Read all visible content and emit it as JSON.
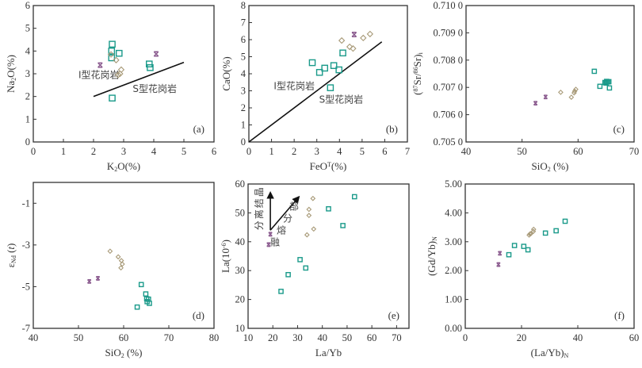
{
  "chart_data": [
    {
      "id": "a",
      "type": "scatter",
      "panel_label": "(a)",
      "xlabel": "K₂O(%)",
      "ylabel": "Na₂O(%)",
      "xlim": [
        0,
        6
      ],
      "ylim": [
        0,
        6
      ],
      "xticks": [
        0,
        1,
        2,
        3,
        4,
        5,
        6
      ],
      "yticks": [
        0,
        1,
        2,
        3,
        4,
        5,
        6
      ],
      "xtick_labels": [
        "0",
        "1",
        "2",
        "3",
        "4",
        "5",
        "6"
      ],
      "ytick_labels": [
        "0",
        "1",
        "2",
        "3",
        "4",
        "5",
        "6"
      ],
      "lines": [
        {
          "name": "I-S boundary",
          "points": [
            [
              2.0,
              2.0
            ],
            [
              5.0,
              3.5
            ]
          ]
        }
      ],
      "annotations": [
        {
          "text": "I型花岗岩",
          "x": 1.5,
          "y": 2.8
        },
        {
          "text": "S型花岗岩",
          "x": 3.3,
          "y": 2.2
        }
      ],
      "series": [
        {
          "name": "square",
          "marker": "square",
          "points": [
            [
              2.62,
              4.3
            ],
            [
              2.6,
              4.0
            ],
            [
              2.85,
              3.9
            ],
            [
              2.6,
              3.7
            ],
            [
              3.85,
              3.43
            ],
            [
              3.88,
              3.27
            ],
            [
              2.62,
              1.93
            ]
          ]
        },
        {
          "name": "diamond",
          "marker": "diamond",
          "points": [
            [
              2.58,
              3.85
            ],
            [
              2.75,
              3.6
            ],
            [
              2.92,
              3.18
            ],
            [
              2.88,
              3.0
            ],
            [
              2.82,
              2.95
            ]
          ]
        },
        {
          "name": "x",
          "marker": "x",
          "points": [
            [
              2.22,
              3.38
            ],
            [
              4.08,
              3.87
            ]
          ]
        }
      ]
    },
    {
      "id": "b",
      "type": "scatter",
      "panel_label": "(b)",
      "xlabel": "FeOᵀ(%)",
      "ylabel": "CaO(%)",
      "xlim": [
        0,
        7
      ],
      "ylim": [
        0,
        8
      ],
      "xticks": [
        0,
        1,
        2,
        3,
        4,
        5,
        6,
        7
      ],
      "yticks": [
        0,
        1,
        2,
        3,
        4,
        5,
        6,
        7,
        8
      ],
      "xtick_labels": [
        "0",
        "1",
        "2",
        "3",
        "4",
        "5",
        "6",
        "7"
      ],
      "ytick_labels": [
        "0",
        "1",
        "2",
        "3",
        "4",
        "5",
        "6",
        "7",
        "8"
      ],
      "lines": [
        {
          "name": "I-S boundary",
          "points": [
            [
              0,
              0
            ],
            [
              5.87,
              5.87
            ]
          ]
        }
      ],
      "annotations": [
        {
          "text": "I型花岗岩",
          "x": 1.1,
          "y": 3.1
        },
        {
          "text": "S型花岗岩",
          "x": 3.1,
          "y": 2.3
        }
      ],
      "series": [
        {
          "name": "square",
          "marker": "square",
          "points": [
            [
              2.8,
              4.65
            ],
            [
              3.12,
              4.08
            ],
            [
              3.35,
              4.33
            ],
            [
              3.75,
              4.48
            ],
            [
              3.98,
              4.23
            ],
            [
              4.15,
              5.22
            ],
            [
              3.6,
              3.18
            ]
          ]
        },
        {
          "name": "diamond",
          "marker": "diamond",
          "points": [
            [
              4.1,
              5.95
            ],
            [
              4.45,
              5.58
            ],
            [
              4.6,
              5.48
            ],
            [
              5.05,
              6.1
            ],
            [
              5.35,
              6.33
            ]
          ]
        },
        {
          "name": "x",
          "marker": "x",
          "points": [
            [
              4.65,
              6.3
            ]
          ]
        }
      ]
    },
    {
      "id": "c",
      "type": "scatter",
      "panel_label": "(c)",
      "xlabel": "SiO₂ (%)",
      "ylabel": "(⁸⁷Sr/⁸⁶Sr)ᵢ",
      "xlim": [
        40,
        70
      ],
      "ylim": [
        0.705,
        0.71
      ],
      "xticks": [
        40,
        50,
        60,
        70
      ],
      "yticks": [
        0.705,
        0.706,
        0.707,
        0.708,
        0.709,
        0.71
      ],
      "xtick_labels": [
        "40",
        "50",
        "60",
        "70"
      ],
      "ytick_labels": [
        "0.705 0",
        "0.706 0",
        "0.707 0",
        "0.708 0",
        "0.709 0",
        "0.710 0"
      ],
      "lines": [],
      "annotations": [],
      "series": [
        {
          "name": "square",
          "marker": "square",
          "points": [
            [
              62.9,
              0.70759
            ],
            [
              63.9,
              0.70704
            ],
            [
              64.8,
              0.70718
            ],
            [
              65.0,
              0.70716
            ],
            [
              65.1,
              0.70722
            ],
            [
              65.3,
              0.7072
            ],
            [
              65.5,
              0.70721
            ],
            [
              65.6,
              0.70698
            ]
          ]
        },
        {
          "name": "diamond",
          "marker": "diamond",
          "points": [
            [
              56.9,
              0.70682
            ],
            [
              58.8,
              0.70664
            ],
            [
              59.3,
              0.7068
            ],
            [
              59.4,
              0.70686
            ],
            [
              59.6,
              0.70693
            ]
          ]
        },
        {
          "name": "x",
          "marker": "x",
          "points": [
            [
              52.4,
              0.70642
            ],
            [
              54.2,
              0.70665
            ]
          ]
        }
      ]
    },
    {
      "id": "d",
      "type": "scatter",
      "panel_label": "(d)",
      "xlabel": "SiO₂ (%)",
      "ylabel": "εNd (t)",
      "xlim": [
        40,
        80
      ],
      "ylim": [
        -7,
        0
      ],
      "xticks": [
        40,
        50,
        60,
        70,
        80
      ],
      "yticks": [
        -7,
        -5,
        -3,
        -1
      ],
      "xtick_labels": [
        "40",
        "50",
        "60",
        "70",
        "80"
      ],
      "ytick_labels": [
        "-7",
        "-5",
        "-3",
        "-1"
      ],
      "lines": [],
      "annotations": [],
      "series": [
        {
          "name": "square",
          "marker": "square",
          "points": [
            [
              63.9,
              -4.9
            ],
            [
              64.9,
              -5.35
            ],
            [
              65.1,
              -5.58
            ],
            [
              65.2,
              -5.72
            ],
            [
              65.5,
              -5.6
            ],
            [
              65.7,
              -5.8
            ],
            [
              63.0,
              -5.98
            ]
          ]
        },
        {
          "name": "diamond",
          "marker": "diamond",
          "points": [
            [
              57.0,
              -3.3
            ],
            [
              58.8,
              -3.57
            ],
            [
              59.5,
              -3.75
            ],
            [
              59.7,
              -3.92
            ],
            [
              59.4,
              -4.1
            ]
          ]
        },
        {
          "name": "x",
          "marker": "x",
          "points": [
            [
              52.4,
              -4.75
            ],
            [
              54.3,
              -4.6
            ]
          ]
        }
      ]
    },
    {
      "id": "e",
      "type": "scatter",
      "panel_label": "(e)",
      "xlabel": "La/Yb",
      "ylabel": "La(10⁻⁶)",
      "xlim": [
        10,
        75
      ],
      "ylim": [
        10,
        60
      ],
      "xticks": [
        10,
        20,
        30,
        40,
        50,
        60,
        70
      ],
      "yticks": [
        10,
        20,
        30,
        40,
        50,
        60
      ],
      "xtick_labels": [
        "10",
        "20",
        "30",
        "40",
        "50",
        "60",
        "70"
      ],
      "ytick_labels": [
        "10",
        "20",
        "30",
        "40",
        "50",
        "60"
      ],
      "arrows": [
        {
          "name": "fractional-crystallization",
          "from": [
            19,
            44
          ],
          "to": [
            19,
            57
          ],
          "label": "分离结晶"
        },
        {
          "name": "partial-melting",
          "from": [
            19,
            44
          ],
          "to": [
            30.5,
            55.5
          ],
          "label": "部分熔融"
        }
      ],
      "annotations": [],
      "series": [
        {
          "name": "square",
          "marker": "square",
          "points": [
            [
              53,
              55.6
            ],
            [
              42.5,
              51.4
            ],
            [
              48.3,
              45.6
            ],
            [
              31,
              33.8
            ],
            [
              33.3,
              30.9
            ],
            [
              26.2,
              28.6
            ],
            [
              23.3,
              22.8
            ]
          ]
        },
        {
          "name": "diamond",
          "marker": "diamond",
          "points": [
            [
              36.2,
              55
            ],
            [
              34.6,
              51.2
            ],
            [
              34.6,
              49.1
            ],
            [
              36.5,
              44.4
            ],
            [
              33.8,
              42.4
            ]
          ]
        },
        {
          "name": "x",
          "marker": "x",
          "points": [
            [
              19,
              42.6
            ],
            [
              18.3,
              39
            ]
          ]
        }
      ]
    },
    {
      "id": "f",
      "type": "scatter",
      "panel_label": "(f)",
      "xlabel": "(La/Yb)N",
      "ylabel": "(Gd/Yb)N",
      "xlim": [
        0,
        60
      ],
      "ylim": [
        0,
        5
      ],
      "xticks": [
        0,
        20,
        40,
        60
      ],
      "yticks": [
        0,
        1,
        2,
        3,
        4,
        5
      ],
      "xtick_labels": [
        "0",
        "20",
        "40",
        "60"
      ],
      "ytick_labels": [
        "0.00",
        "1.00",
        "2.00",
        "3.00",
        "4.00",
        "5.00"
      ],
      "lines": [],
      "annotations": [],
      "series": [
        {
          "name": "square",
          "marker": "square",
          "points": [
            [
              15.5,
              2.55
            ],
            [
              17.5,
              2.87
            ],
            [
              20.8,
              2.84
            ],
            [
              22.3,
              2.72
            ],
            [
              28.5,
              3.3
            ],
            [
              32.3,
              3.38
            ],
            [
              35.5,
              3.71
            ]
          ]
        },
        {
          "name": "diamond",
          "marker": "diamond",
          "points": [
            [
              22.7,
              3.23
            ],
            [
              23.0,
              3.27
            ],
            [
              23.3,
              3.28
            ],
            [
              24.2,
              3.36
            ],
            [
              24.3,
              3.43
            ]
          ]
        },
        {
          "name": "x",
          "marker": "x",
          "points": [
            [
              12.3,
              2.6
            ],
            [
              11.8,
              2.21
            ]
          ]
        }
      ]
    }
  ]
}
